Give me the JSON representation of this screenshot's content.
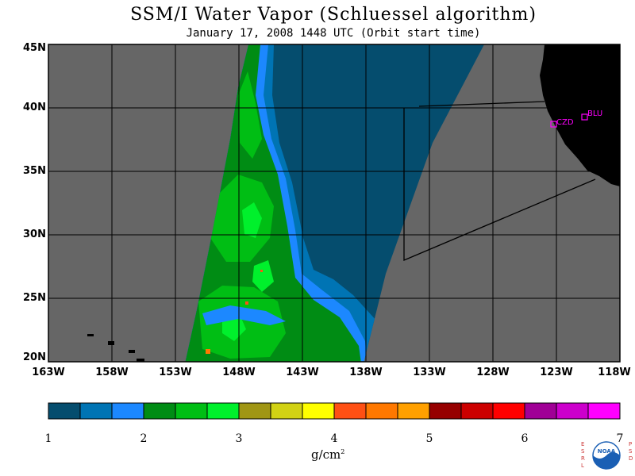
{
  "title": "SSM/I Water Vapor (Schluessel algorithm)",
  "subtitle": "January 17, 2008  1448 UTC  (Orbit start time)",
  "map": {
    "lon_range": [
      -163,
      -118
    ],
    "lat_range": [
      20,
      45
    ],
    "lon_ticks": [
      {
        "value": -163,
        "label": "163W"
      },
      {
        "value": -158,
        "label": "158W"
      },
      {
        "value": -153,
        "label": "153W"
      },
      {
        "value": -148,
        "label": "148W"
      },
      {
        "value": -143,
        "label": "143W"
      },
      {
        "value": -138,
        "label": "138W"
      },
      {
        "value": -133,
        "label": "133W"
      },
      {
        "value": -128,
        "label": "128W"
      },
      {
        "value": -123,
        "label": "123W"
      },
      {
        "value": -118,
        "label": "118W"
      }
    ],
    "lat_ticks": [
      {
        "value": 45,
        "label": "45N"
      },
      {
        "value": 40,
        "label": "40N"
      },
      {
        "value": 35,
        "label": "35N"
      },
      {
        "value": 30,
        "label": "30N"
      },
      {
        "value": 25,
        "label": "25N"
      },
      {
        "value": 20,
        "label": "20N"
      }
    ],
    "stations": [
      {
        "label": "CZD",
        "lon": -123.0,
        "lat": 38.6
      },
      {
        "label": "BLU",
        "lon": -120.8,
        "lat": 39.3
      }
    ],
    "no_data_color": "#666666",
    "land_color": "#000000"
  },
  "colorbar": {
    "units": "g/cm",
    "units_sup": "2",
    "tick_labels": [
      "1",
      "2",
      "3",
      "4",
      "5",
      "6",
      "7"
    ],
    "colors": [
      "#054d6e",
      "#0074b4",
      "#1c88ff",
      "#008c14",
      "#00be14",
      "#00f02c",
      "#a09614",
      "#d2d214",
      "#ffff00",
      "#ff5014",
      "#ff7800",
      "#ffa000",
      "#960000",
      "#cc0000",
      "#ff0000",
      "#a00096",
      "#cc00cc",
      "#ff00ff"
    ]
  },
  "logo": {
    "left_letters": "ESRL",
    "right_letters": "PSD",
    "center_text": "NOAA"
  }
}
